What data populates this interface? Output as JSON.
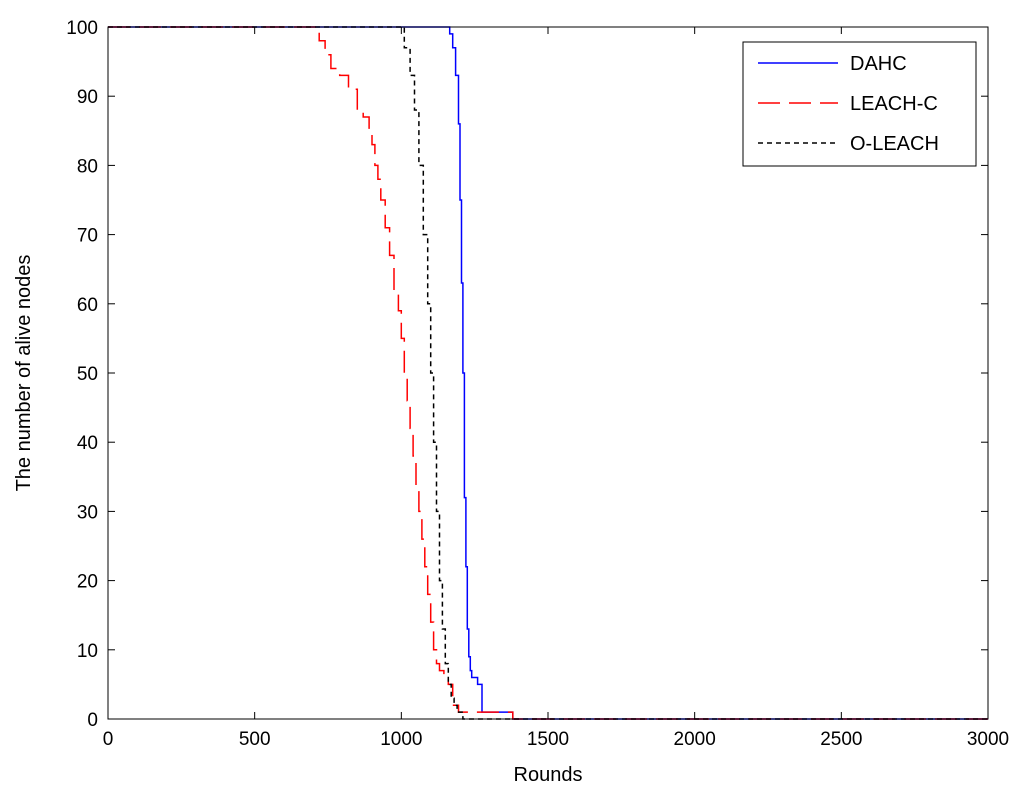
{
  "chart_data": {
    "type": "line",
    "title": "",
    "xlabel": "Rounds",
    "ylabel": "The number of alive nodes",
    "xlim": [
      0,
      3000
    ],
    "ylim": [
      0,
      100
    ],
    "xticks": [
      0,
      500,
      1000,
      1500,
      2000,
      2500,
      3000
    ],
    "yticks": [
      0,
      10,
      20,
      30,
      40,
      50,
      60,
      70,
      80,
      90,
      100
    ],
    "xtick_labels": [
      "0",
      "500",
      "1000",
      "1500",
      "2000",
      "2500",
      "3000"
    ],
    "ytick_labels": [
      "0",
      "10",
      "20",
      "30",
      "40",
      "50",
      "60",
      "70",
      "80",
      "90",
      "100"
    ],
    "grid": false,
    "legend_position": "top-right",
    "series": [
      {
        "name": "DAHC",
        "color": "#0000ff",
        "line_style": "solid",
        "x": [
          0,
          1150,
          1165,
          1175,
          1185,
          1195,
          1200,
          1205,
          1210,
          1215,
          1220,
          1225,
          1230,
          1235,
          1240,
          1245,
          1260,
          1275,
          1285,
          1300,
          1320,
          1340,
          1360,
          1380,
          3000
        ],
        "y": [
          100,
          100,
          99,
          97,
          93,
          86,
          75,
          63,
          50,
          32,
          22,
          13,
          9,
          7,
          6,
          6,
          5,
          1,
          1,
          1,
          1,
          1,
          1,
          0,
          0
        ]
      },
      {
        "name": "LEACH-C",
        "color": "#ff0000",
        "line_style": "dashed",
        "x": [
          0,
          700,
          720,
          740,
          760,
          790,
          820,
          850,
          870,
          890,
          900,
          910,
          920,
          930,
          945,
          960,
          975,
          990,
          1000,
          1010,
          1020,
          1030,
          1040,
          1050,
          1060,
          1070,
          1080,
          1090,
          1100,
          1110,
          1120,
          1130,
          1145,
          1160,
          1175,
          1195,
          1220,
          1260,
          1300,
          1340,
          1380,
          3000
        ],
        "y": [
          100,
          100,
          98,
          96,
          94,
          93,
          91,
          88,
          87,
          85,
          83,
          80,
          78,
          75,
          71,
          67,
          62,
          59,
          55,
          50,
          46,
          42,
          38,
          33,
          30,
          26,
          22,
          18,
          14,
          10,
          8,
          7,
          6,
          5,
          2,
          1,
          1,
          1,
          1,
          1,
          0,
          0
        ]
      },
      {
        "name": "O-LEACH",
        "color": "#000000",
        "line_style": "dotted",
        "x": [
          0,
          990,
          1010,
          1030,
          1045,
          1060,
          1075,
          1090,
          1100,
          1110,
          1120,
          1130,
          1140,
          1150,
          1160,
          1170,
          1180,
          1190,
          1210,
          1260,
          3000
        ],
        "y": [
          100,
          100,
          97,
          93,
          88,
          80,
          70,
          60,
          50,
          40,
          30,
          20,
          13,
          8,
          5,
          3,
          2,
          1,
          0,
          0,
          0
        ]
      }
    ]
  }
}
